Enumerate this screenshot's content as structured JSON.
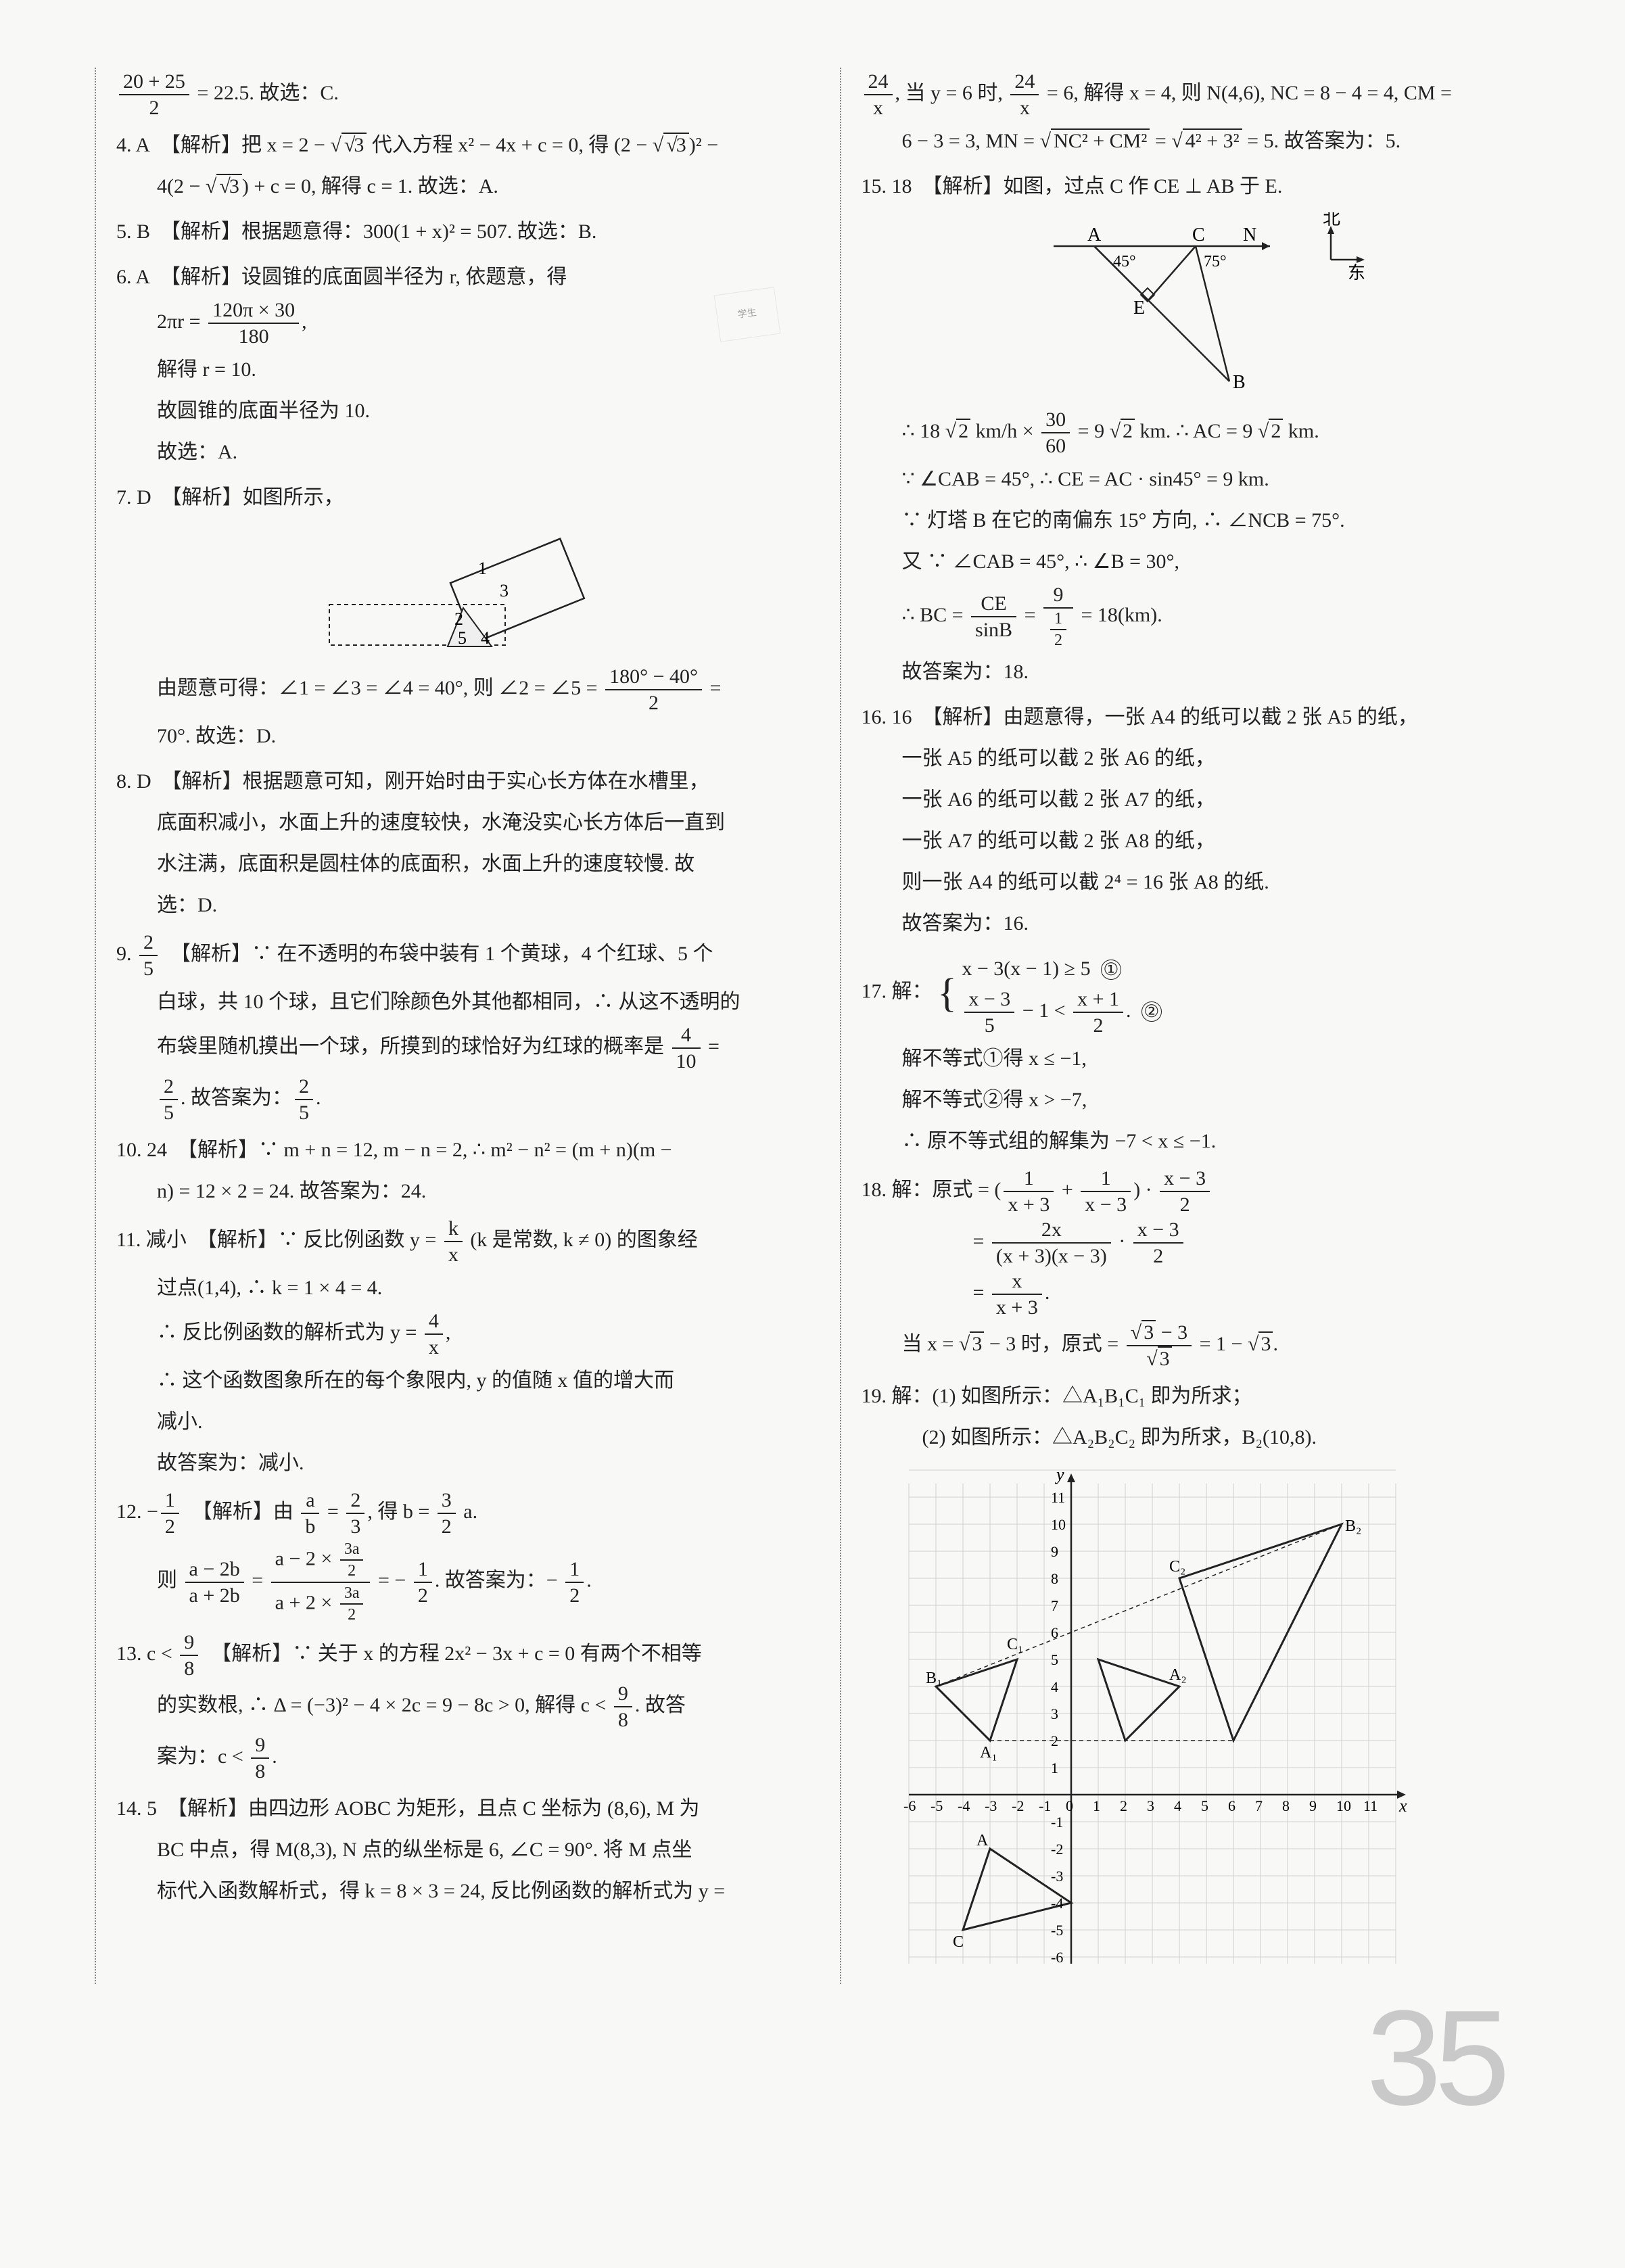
{
  "page_number": "35",
  "left": {
    "q3": {
      "l1": [
        "20 + 25",
        "2",
        " = 22.5. 故选：C."
      ]
    },
    "q4": {
      "num": "4.",
      "ans": "A",
      "tag": "【解析】",
      "l1a": "把 x = 2 − ",
      "l1b": "3",
      "l1c": " 代入方程 x² − 4x + c = 0, 得 (2 − ",
      "l1d": "3",
      "l1e": ")² −",
      "l2a": "4(2 − ",
      "l2b": "3",
      "l2c": ") + c = 0, 解得 c = 1. 故选：A."
    },
    "q5": {
      "num": "5.",
      "ans": "B",
      "tag": "【解析】",
      "txt": "根据题意得：300(1 + x)² = 507. 故选：B."
    },
    "q6": {
      "num": "6.",
      "ans": "A",
      "tag": "【解析】",
      "l1": "设圆锥的底面圆半径为 r, 依题意，得",
      "frac_l": "2πr = ",
      "frac_num": "120π × 30",
      "frac_den": "180",
      "frac_r": ",",
      "l3": "解得 r = 10.",
      "l4": "故圆锥的底面半径为 10.",
      "l5": "故选：A."
    },
    "q7": {
      "num": "7.",
      "ans": "D",
      "tag": "【解析】",
      "l1": "如图所示，",
      "fig_labels": [
        "1",
        "3",
        "2",
        "5",
        "4"
      ],
      "l2a": "由题意可得：∠1 = ∠3 = ∠4 = 40°, 则 ∠2 = ∠5 = ",
      "frac_num": "180° − 40°",
      "frac_den": "2",
      "l2b": " =",
      "l3": "70°. 故选：D."
    },
    "q8": {
      "num": "8.",
      "ans": "D",
      "tag": "【解析】",
      "l1": "根据题意可知，刚开始时由于实心长方体在水槽里，",
      "l2": "底面积减小，水面上升的速度较快，水淹没实心长方体后一直到",
      "l3": "水注满，底面积是圆柱体的底面积，水面上升的速度较慢. 故",
      "l4": "选：D."
    },
    "q9": {
      "num": "9.",
      "ans_num": "2",
      "ans_den": "5",
      "tag": "【解析】",
      "l1": "∵ 在不透明的布袋中装有 1 个黄球，4 个红球、5 个",
      "l2": "白球，共 10 个球，且它们除颜色外其他都相同，∴ 从这不透明的",
      "l3a": "布袋里随机摸出一个球，所摸到的球恰好为红球的概率是 ",
      "l3_num": "4",
      "l3_den": "10",
      "l3b": " =",
      "l4_numA": "2",
      "l4_denA": "5",
      "l4a": ". 故答案为：",
      "l4_numB": "2",
      "l4_denB": "5",
      "l4b": "."
    },
    "q10": {
      "num": "10.",
      "ans": "24",
      "tag": "【解析】",
      "l1": "∵ m + n = 12, m − n = 2, ∴ m² − n² = (m + n)(m −",
      "l2": "n) = 12 × 2 = 24. 故答案为：24."
    },
    "q11": {
      "num": "11.",
      "ans": "减小",
      "tag": "【解析】",
      "l1a": "∵ 反比例函数 y = ",
      "l1_num": "k",
      "l1_den": "x",
      "l1b": " (k 是常数, k ≠ 0) 的图象经",
      "l2": "过点(1,4), ∴ k = 1 × 4 = 4.",
      "l3a": "∴ 反比例函数的解析式为 y = ",
      "l3_num": "4",
      "l3_den": "x",
      "l3b": ",",
      "l4": "∴ 这个函数图象所在的每个象限内, y 的值随 x 值的增大而",
      "l5": "减小.",
      "l6": "故答案为：减小."
    },
    "q12": {
      "num": "12.",
      "ans_pre": "−",
      "ans_num": "1",
      "ans_den": "2",
      "tag": "【解析】",
      "l1a": "由 ",
      "l1_numA": "a",
      "l1_denA": "b",
      "l1b": " = ",
      "l1_numB": "2",
      "l1_denB": "3",
      "l1c": ", 得 b = ",
      "l1_numC": "3",
      "l1_denC": "2",
      "l1d": " a.",
      "l2a": "则 ",
      "bigL_num": "a − 2b",
      "bigL_den": "a + 2b",
      "l2b": " = ",
      "bigR_num_top": "a − 2 × ",
      "bigR_num_frac_num": "3a",
      "bigR_num_frac_den": "2",
      "bigR_den_top": "a + 2 × ",
      "bigR_den_frac_num": "3a",
      "bigR_den_frac_den": "2",
      "l2c": " = − ",
      "l2_num": "1",
      "l2_den": "2",
      "l2d": ". 故答案为：− ",
      "l2_numB": "1",
      "l2_denB": "2",
      "l2e": "."
    },
    "q13": {
      "num": "13.",
      "ans_pre": "c < ",
      "ans_num": "9",
      "ans_den": "8",
      "tag": "【解析】",
      "l1": "∵ 关于 x 的方程 2x² − 3x + c = 0 有两个不相等",
      "l2a": "的实数根, ∴ Δ = (−3)² − 4 × 2c = 9 − 8c > 0, 解得 c < ",
      "l2_num": "9",
      "l2_den": "8",
      "l2b": ". 故答",
      "l3a": "案为：c < ",
      "l3_num": "9",
      "l3_den": "8",
      "l3b": "."
    },
    "q14": {
      "num": "14.",
      "ans": "5",
      "tag": "【解析】",
      "l1": "由四边形 AOBC 为矩形，且点 C 坐标为 (8,6), M 为",
      "l2": "BC 中点，得 M(8,3), N 点的纵坐标是 6, ∠C = 90°. 将 M 点坐",
      "l3": "标代入函数解析式，得 k = 8 × 3 = 24, 反比例函数的解析式为 y ="
    }
  },
  "right": {
    "q14r": {
      "l1_num": "24",
      "l1_den": "x",
      "l1a": ", 当 y = 6 时, ",
      "l1_numB": "24",
      "l1_denB": "x",
      "l1b": " = 6, 解得 x = 4, 则 N(4,6), NC = 8 − 4 = 4, CM =",
      "l2a": "6 − 3 = 3, MN = ",
      "rad1": "NC² + CM²",
      "l2b": " = ",
      "rad2": "4² + 3²",
      "l2c": " = 5. 故答案为：5."
    },
    "q15": {
      "num": "15.",
      "ans": "18",
      "tag": "【解析】",
      "l1": "如图，过点 C 作 CE ⊥ AB 于 E.",
      "fig": {
        "A": "A",
        "C": "C",
        "N": "N",
        "E": "E",
        "B": "B",
        "a45": "45°",
        "a75": "75°",
        "north": "北",
        "east": "东"
      },
      "l2a": "∴ 18 ",
      "rad18": "2",
      "l2b": " km/h × ",
      "frA_num": "30",
      "frA_den": "60",
      "l2c": " = 9 ",
      "rad9": "2",
      "l2d": " km. ∴ AC = 9 ",
      "rad9b": "2",
      "l2e": " km.",
      "l3": "∵ ∠CAB = 45°, ∴ CE = AC · sin45° = 9 km.",
      "l4": "∵ 灯塔 B 在它的南偏东 15° 方向, ∴ ∠NCB = 75°.",
      "l5": "又 ∵ ∠CAB = 45°, ∴ ∠B = 30°,",
      "l6a": "∴ BC = ",
      "frB_num": "CE",
      "frB_den": "sinB",
      "l6b": " = ",
      "frC_num": "9",
      "frC_den_num": "1",
      "frC_den_den": "2",
      "l6c": " = 18(km).",
      "l7": "故答案为：18."
    },
    "q16": {
      "num": "16.",
      "ans": "16",
      "tag": "【解析】",
      "l1": "由题意得，一张 A4 的纸可以截 2 张 A5 的纸，",
      "l2": "一张 A5 的纸可以截 2 张 A6 的纸，",
      "l3": "一张 A6 的纸可以截 2 张 A7 的纸，",
      "l4": "一张 A7 的纸可以截 2 张 A8 的纸，",
      "l5": "则一张 A4 的纸可以截 2⁴ = 16 张 A8 的纸.",
      "l6": "故答案为：16."
    },
    "q17": {
      "num": "17.",
      "head": "解：",
      "sys1": "x − 3(x − 1) ≥ 5",
      "c1": "①",
      "sys2a_num": "x − 3",
      "sys2a_den": "5",
      "sys2m": " − 1 < ",
      "sys2b_num": "x + 1",
      "sys2b_den": "2",
      "sys2c": ".",
      "c2": "②",
      "l1": "解不等式①得 x ≤ −1,",
      "l2": "解不等式②得 x > −7,",
      "l3": "∴ 原不等式组的解集为 −7 < x ≤ −1."
    },
    "q18": {
      "num": "18.",
      "head": "解：原式 = ",
      "p1a": "(",
      "p1_numA": "1",
      "p1_denA": "x + 3",
      "p1b": " + ",
      "p1_numB": "1",
      "p1_denB": "x − 3",
      "p1c": ") · ",
      "p1_numC": "x − 3",
      "p1_denC": "2",
      "l2a": "= ",
      "p2_num": "2x",
      "p2_den": "(x + 3)(x − 3)",
      "l2b": " · ",
      "p2_numB": "x − 3",
      "p2_denB": "2",
      "l3a": "= ",
      "p3_num": "x",
      "p3_den": "x + 3",
      "l3b": ".",
      "l4a": "当 x = ",
      "rad4": "3",
      "l4b": " − 3 时，原式 = ",
      "p4_num_rad": "3",
      "p4_num_post": " − 3",
      "p4_den_rad": "3",
      "l4c": " = 1 − ",
      "rad5": "3",
      "l4d": "."
    },
    "q19": {
      "num": "19.",
      "head": "解：",
      "l1": "(1) 如图所示：△A₁B₁C₁ 即为所求；",
      "l2": "(2) 如图所示：△A₂B₂C₂ 即为所求，B₂(10,8).",
      "grid": {
        "x_ticks": [
          "-6",
          "-5",
          "-4",
          "-3",
          "-2",
          "-1",
          "0",
          "1",
          "2",
          "3",
          "4",
          "5",
          "6",
          "7",
          "8",
          "9",
          "10",
          "11"
        ],
        "y_ticks": [
          "-6",
          "-5",
          "-4",
          "-3",
          "-2",
          "-1",
          "1",
          "2",
          "3",
          "4",
          "5",
          "6",
          "7",
          "8",
          "9",
          "10",
          "11"
        ],
        "x_label": "x",
        "y_label": "y",
        "pts": {
          "A": "A",
          "B1": "B₁",
          "A1": "A₁",
          "C1": "C₁",
          "A2": "A₂",
          "B2": "B₂",
          "C2": "C₂",
          "C": "C"
        }
      }
    }
  }
}
